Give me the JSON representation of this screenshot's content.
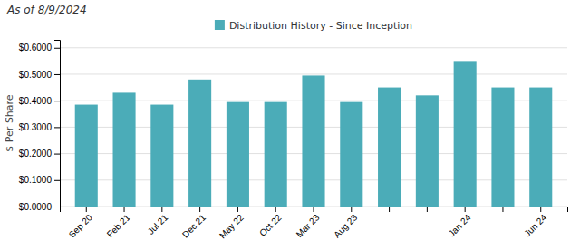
{
  "chart_data": {
    "type": "bar",
    "title": "As of 8/9/2024",
    "ylabel": "$ Per Share",
    "categories": [
      "Sep 20",
      "Feb 21",
      "Jul 21",
      "Dec 21",
      "May 22",
      "Oct 22",
      "Mar 23",
      "Aug 23",
      null,
      null,
      "Jan 24",
      null,
      "Jun 24"
    ],
    "series": [
      {
        "name": "Distribution History - Since Inception",
        "color": "#4bacb8",
        "values": [
          0.385,
          0.43,
          0.385,
          0.48,
          0.395,
          0.395,
          0.495,
          0.395,
          0.45,
          0.42,
          0.55,
          0.45,
          0.45
        ]
      }
    ],
    "ylim": [
      0.0,
      0.63
    ],
    "yticks": [
      {
        "value": 0.0,
        "label": "$0.0000"
      },
      {
        "value": 0.1,
        "label": "$0.1000"
      },
      {
        "value": 0.2,
        "label": "$0.2000"
      },
      {
        "value": 0.3,
        "label": "$0.3000"
      },
      {
        "value": 0.4,
        "label": "$0.4000"
      },
      {
        "value": 0.5,
        "label": "$0.5000"
      },
      {
        "value": 0.6,
        "label": "$0.6000"
      }
    ],
    "grid": true,
    "legend": "top"
  }
}
